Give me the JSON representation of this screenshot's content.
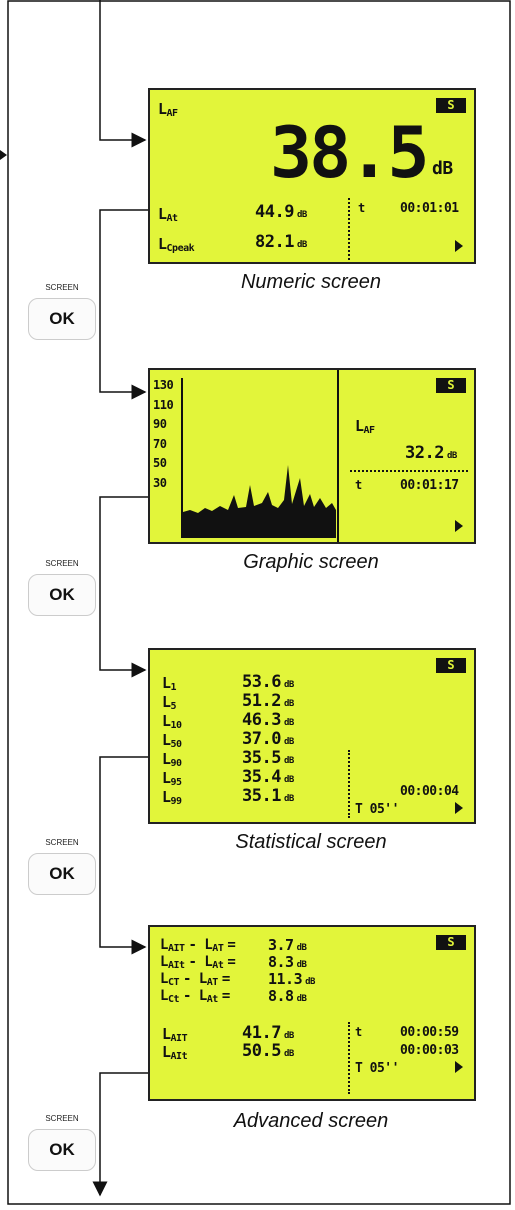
{
  "button": {
    "label": "SCREEN",
    "key": "OK"
  },
  "screens": [
    {
      "caption": "Numeric screen",
      "badge": "S",
      "main": {
        "label": "L",
        "sub": "AF",
        "value": "38.5",
        "unit": "dB"
      },
      "rows": [
        {
          "label": "L",
          "sub": "At",
          "value": "44.9",
          "unit": "dB"
        },
        {
          "label": "L",
          "sub": "Cpeak",
          "value": "82.1",
          "unit": "dB"
        }
      ],
      "time_label": "t",
      "time": "00:01:01"
    },
    {
      "caption": "Graphic screen",
      "badge": "S",
      "axis": [
        "130",
        "110",
        "90",
        "70",
        "50",
        "30"
      ],
      "main": {
        "label": "L",
        "sub": "AF",
        "value": "32.2",
        "unit": "dB"
      },
      "time_label": "t",
      "time": "00:01:17"
    },
    {
      "caption": "Statistical screen",
      "badge": "S",
      "rows": [
        {
          "label": "L",
          "sub": "1",
          "value": "53.6",
          "unit": "dB"
        },
        {
          "label": "L",
          "sub": "5",
          "value": "51.2",
          "unit": "dB"
        },
        {
          "label": "L",
          "sub": "10",
          "value": "46.3",
          "unit": "dB"
        },
        {
          "label": "L",
          "sub": "50",
          "value": "37.0",
          "unit": "dB"
        },
        {
          "label": "L",
          "sub": "90",
          "value": "35.5",
          "unit": "dB"
        },
        {
          "label": "L",
          "sub": "95",
          "value": "35.4",
          "unit": "dB"
        },
        {
          "label": "L",
          "sub": "99",
          "value": "35.1",
          "unit": "dB"
        }
      ],
      "time": "00:00:04",
      "period": "T 05''"
    },
    {
      "caption": "Advanced screen",
      "badge": "S",
      "diffs": [
        {
          "a": "L",
          "a_sub": "AIT",
          "b": "- L",
          "b_sub": "AT",
          "eq": "=",
          "value": "3.7",
          "unit": "dB"
        },
        {
          "a": "L",
          "a_sub": "AIt",
          "b": "- L",
          "b_sub": "At",
          "eq": "=",
          "value": "8.3",
          "unit": "dB"
        },
        {
          "a": "L",
          "a_sub": "CT",
          "b": "- L",
          "b_sub": "AT",
          "eq": "=",
          "value": "11.3",
          "unit": "dB"
        },
        {
          "a": "L",
          "a_sub": "Ct",
          "b": "- L",
          "b_sub": "At",
          "eq": "=",
          "value": "8.8",
          "unit": "dB"
        }
      ],
      "rows": [
        {
          "label": "L",
          "sub": "AIT",
          "value": "41.7",
          "unit": "dB"
        },
        {
          "label": "L",
          "sub": "AIt",
          "value": "50.5",
          "unit": "dB"
        }
      ],
      "time_label": "t",
      "times": [
        "00:00:59",
        "00:00:03"
      ],
      "period": "T 05''"
    }
  ]
}
